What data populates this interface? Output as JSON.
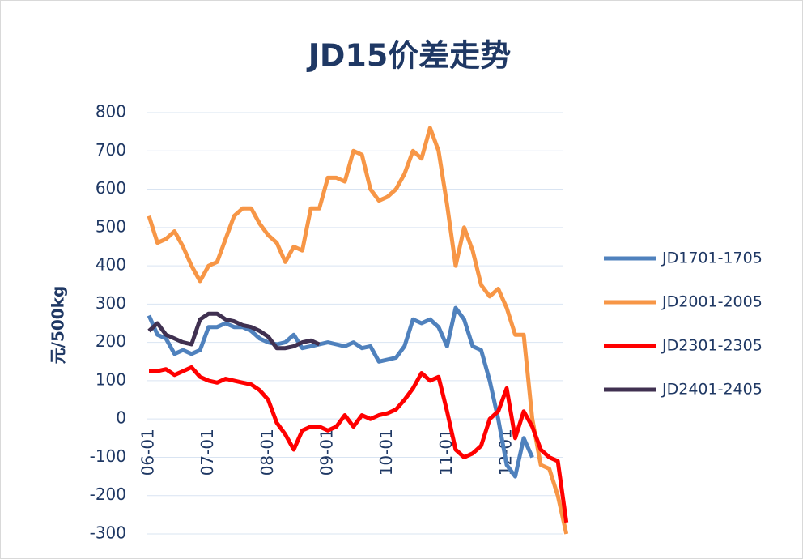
{
  "chart_data": {
    "type": "line",
    "title": "JD15价差走势",
    "y_label": "元/500kg",
    "categories": [
      "06-01",
      null,
      null,
      null,
      null,
      null,
      null,
      "07-01",
      null,
      null,
      null,
      null,
      null,
      null,
      "08-01",
      null,
      null,
      null,
      null,
      null,
      null,
      "09-01",
      null,
      null,
      null,
      null,
      null,
      null,
      "10-01",
      null,
      null,
      null,
      null,
      null,
      null,
      "11-01",
      null,
      null,
      null,
      null,
      null,
      null,
      "12-01",
      null,
      null,
      null,
      null,
      null,
      null,
      null
    ],
    "series": [
      {
        "name": "JD1701-1705",
        "color": "#4f81bd",
        "values": [
          270,
          220,
          210,
          170,
          180,
          170,
          180,
          240,
          240,
          250,
          240,
          240,
          230,
          210,
          200,
          195,
          200,
          220,
          185,
          190,
          195,
          200,
          195,
          190,
          200,
          185,
          190,
          150,
          155,
          160,
          190,
          260,
          250,
          260,
          240,
          190,
          290,
          260,
          190,
          180,
          100,
          0,
          -120,
          -150,
          -50,
          -100,
          null,
          null,
          null,
          null
        ]
      },
      {
        "name": "JD2001-2005",
        "color": "#f79646",
        "values": [
          530,
          460,
          470,
          490,
          450,
          400,
          360,
          400,
          410,
          470,
          530,
          550,
          550,
          510,
          480,
          460,
          410,
          450,
          440,
          550,
          550,
          630,
          630,
          620,
          700,
          690,
          600,
          570,
          580,
          600,
          640,
          700,
          680,
          760,
          700,
          560,
          400,
          500,
          440,
          350,
          320,
          340,
          290,
          220,
          220,
          0,
          -120,
          -130,
          -200,
          -300
        ]
      },
      {
        "name": "JD2301-2305",
        "color": "#ff0000",
        "values": [
          125,
          125,
          130,
          115,
          125,
          135,
          110,
          100,
          95,
          105,
          100,
          95,
          90,
          75,
          50,
          -10,
          -40,
          -80,
          -30,
          -20,
          -20,
          -30,
          -20,
          10,
          -20,
          10,
          0,
          10,
          15,
          25,
          50,
          80,
          120,
          100,
          110,
          20,
          -80,
          -100,
          -90,
          -70,
          0,
          20,
          80,
          -50,
          20,
          -20,
          -80,
          -100,
          -110,
          -270
        ]
      },
      {
        "name": "JD2401-2405",
        "color": "#403151",
        "values": [
          230,
          250,
          220,
          210,
          200,
          195,
          260,
          275,
          275,
          260,
          255,
          245,
          240,
          230,
          215,
          185,
          185,
          190,
          200,
          205,
          195,
          null,
          null,
          null,
          null,
          null,
          null,
          null,
          null,
          null,
          null,
          null,
          null,
          null,
          null,
          null,
          null,
          null,
          null,
          null,
          null,
          null,
          null,
          null,
          null,
          null,
          null,
          null,
          null,
          null
        ]
      }
    ],
    "ylim": [
      -300,
      800
    ],
    "yticks": [
      -300,
      -200,
      -100,
      0,
      100,
      200,
      300,
      400,
      500,
      600,
      700,
      800
    ],
    "grid": true,
    "legend": "right"
  }
}
